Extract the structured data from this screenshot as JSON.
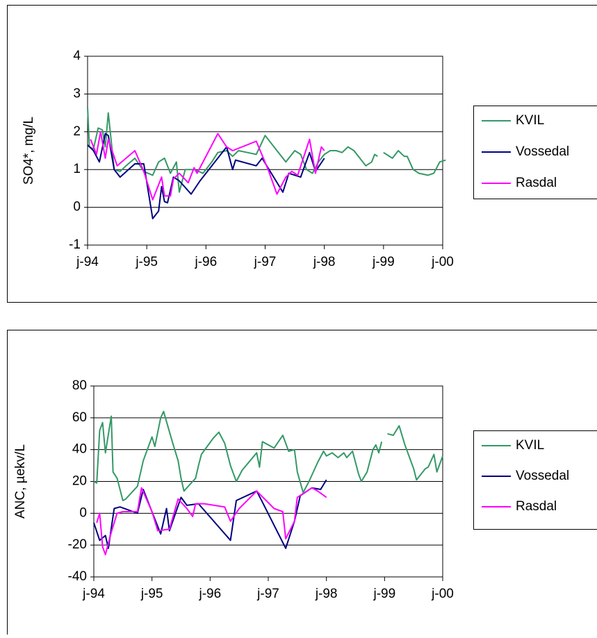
{
  "chart_data": [
    {
      "type": "line",
      "ylabel": "SO4*, mg/L",
      "ylim": [
        -1,
        4
      ],
      "yticks": [
        -1,
        0,
        1,
        2,
        3,
        4
      ],
      "xlim": [
        1994,
        2000
      ],
      "xticks": [
        {
          "value": 1994,
          "label": "j-94"
        },
        {
          "value": 1995,
          "label": "j-95"
        },
        {
          "value": 1996,
          "label": "j-96"
        },
        {
          "value": 1997,
          "label": "j-97"
        },
        {
          "value": 1998,
          "label": "j-98"
        },
        {
          "value": 1999,
          "label": "j-99"
        },
        {
          "value": 2000,
          "label": "j-00"
        }
      ],
      "grid": true,
      "legend": "right",
      "series": [
        {
          "name": "KVIL",
          "color": "#339966",
          "x": [
            1994.0,
            1994.03,
            1994.1,
            1994.18,
            1994.25,
            1994.3,
            1994.35,
            1994.45,
            1994.55,
            1994.65,
            1994.8,
            1994.95,
            1995.1,
            1995.2,
            1995.3,
            1995.4,
            1995.5,
            1995.55,
            1995.65,
            1995.8,
            1995.95,
            1996.1,
            1996.2,
            1996.35,
            1996.45,
            1996.55,
            1996.7,
            1996.85,
            1997.0,
            1997.2,
            1997.35,
            1997.5,
            1997.6,
            1997.7,
            1997.8,
            1997.9,
            1998.0,
            1998.1,
            1998.2,
            1998.3,
            1998.4,
            1998.5,
            1998.6,
            1998.7,
            1998.8,
            1998.85,
            1998.9,
            null,
            1999.0,
            1999.15,
            1999.25,
            1999.35,
            1999.4,
            1999.5,
            1999.6,
            1999.75,
            1999.85,
            1999.95,
            2000.05
          ],
          "values": [
            2.65,
            1.6,
            1.55,
            2.1,
            2.05,
            1.6,
            2.5,
            1.0,
            0.95,
            1.1,
            1.3,
            0.95,
            0.85,
            1.2,
            1.3,
            0.9,
            1.2,
            0.4,
            1.0,
            1.0,
            0.9,
            1.2,
            1.45,
            1.5,
            1.35,
            1.5,
            1.45,
            1.4,
            1.9,
            1.5,
            1.2,
            1.5,
            1.4,
            1.0,
            0.9,
            1.2,
            1.4,
            1.5,
            1.5,
            1.45,
            1.6,
            1.5,
            1.3,
            1.1,
            1.2,
            1.4,
            1.35,
            null,
            1.45,
            1.3,
            1.5,
            1.35,
            1.35,
            1.0,
            0.9,
            0.85,
            0.9,
            1.2,
            1.25
          ]
        },
        {
          "name": "Vossedal",
          "color": "#000080",
          "x": [
            1994.0,
            1994.1,
            1994.2,
            1994.3,
            1994.35,
            1994.45,
            1994.55,
            1994.8,
            1994.95,
            1995.1,
            1995.2,
            1995.25,
            1995.3,
            1995.35,
            1995.45,
            1995.55,
            1995.75,
            1995.9,
            1996.35,
            1996.45,
            1996.5,
            1996.85,
            1996.95,
            1997.3,
            1997.4,
            1997.6,
            1997.75,
            1997.85,
            1998.0
          ],
          "values": [
            1.65,
            1.5,
            1.2,
            1.95,
            1.9,
            1.0,
            0.8,
            1.15,
            1.15,
            -0.3,
            -0.1,
            0.55,
            0.15,
            0.12,
            0.8,
            0.7,
            0.35,
            0.7,
            1.6,
            1.0,
            1.25,
            1.1,
            1.3,
            0.4,
            0.9,
            0.8,
            1.45,
            0.95,
            1.3
          ]
        },
        {
          "name": "Rasdal",
          "color": "#ff00ff",
          "x": [
            1994.05,
            1994.15,
            1994.22,
            1994.3,
            1994.35,
            1994.5,
            1994.8,
            1994.95,
            1995.1,
            1995.25,
            1995.3,
            1995.4,
            1995.45,
            1995.55,
            1995.7,
            1995.8,
            1995.85,
            1996.2,
            1996.35,
            1996.45,
            1996.85,
            1997.05,
            1997.2,
            1997.35,
            1997.45,
            1997.55,
            1997.75,
            1997.85,
            1997.95,
            1998.0
          ],
          "values": [
            1.8,
            1.4,
            2.0,
            1.3,
            1.8,
            1.1,
            1.5,
            0.95,
            0.2,
            0.8,
            0.3,
            0.3,
            0.75,
            0.9,
            0.65,
            1.05,
            0.9,
            1.95,
            1.6,
            1.5,
            1.75,
            1.0,
            0.35,
            0.8,
            0.95,
            0.85,
            1.8,
            0.9,
            1.6,
            1.5
          ]
        }
      ]
    },
    {
      "type": "line",
      "ylabel": "ANC, µekv/L",
      "ylim": [
        -40,
        80
      ],
      "yticks": [
        -40,
        -20,
        0,
        20,
        40,
        60,
        80
      ],
      "xlim": [
        1994,
        2000
      ],
      "xticks": [
        {
          "value": 1994,
          "label": "j-94"
        },
        {
          "value": 1995,
          "label": "j-95"
        },
        {
          "value": 1996,
          "label": "j-96"
        },
        {
          "value": 1997,
          "label": "j-97"
        },
        {
          "value": 1998,
          "label": "j-98"
        },
        {
          "value": 1999,
          "label": "j-99"
        },
        {
          "value": 2000,
          "label": "j-00"
        }
      ],
      "grid": true,
      "legend": "right",
      "series": [
        {
          "name": "KVIL",
          "color": "#339966",
          "x": [
            1994.0,
            1994.05,
            1994.1,
            1994.15,
            1994.2,
            1994.3,
            1994.33,
            1994.4,
            1994.5,
            1994.55,
            1994.75,
            1994.85,
            1995.0,
            1995.05,
            1995.15,
            1995.2,
            1995.35,
            1995.45,
            1995.5,
            1995.55,
            1995.7,
            1995.75,
            1995.8,
            1995.85,
            1996.05,
            1996.15,
            1996.25,
            1996.35,
            1996.45,
            1996.55,
            1996.8,
            1996.85,
            1996.9,
            1997.1,
            1997.25,
            1997.35,
            1997.45,
            1997.5,
            1997.6,
            1997.7,
            1997.85,
            1997.95,
            1998.0,
            1998.1,
            1998.2,
            1998.3,
            1998.35,
            1998.45,
            1998.55,
            1998.6,
            1998.7,
            1998.8,
            1998.85,
            1998.9,
            1998.95,
            null,
            1999.05,
            1999.15,
            1999.25,
            1999.35,
            1999.5,
            1999.55,
            1999.7,
            1999.75,
            1999.85,
            1999.9,
            2000.0
          ],
          "values": [
            20,
            19,
            52,
            57,
            38,
            61,
            26,
            22,
            8,
            9,
            17,
            33,
            48,
            42,
            60,
            64,
            45,
            33,
            22,
            14,
            20,
            22,
            30,
            37,
            47,
            51,
            44,
            30,
            20,
            27,
            38,
            29,
            45,
            41,
            49,
            39,
            40,
            26,
            13,
            20,
            32,
            39,
            36,
            38,
            35,
            38,
            35,
            39,
            25,
            20,
            26,
            40,
            43,
            38,
            45,
            null,
            50,
            49,
            55,
            43,
            28,
            21,
            28,
            29,
            37,
            26,
            36
          ]
        },
        {
          "name": "Vossedal",
          "color": "#000080",
          "x": [
            1994.0,
            1994.1,
            1994.2,
            1994.25,
            1994.35,
            1994.45,
            1994.75,
            1994.85,
            1995.15,
            1995.25,
            1995.3,
            1995.5,
            1995.6,
            1995.8,
            1996.35,
            1996.45,
            1996.8,
            1996.9,
            1997.3,
            1997.45,
            1997.55,
            1997.75,
            1997.9,
            1998.0
          ],
          "values": [
            -6,
            -17,
            -14,
            -22,
            3,
            4,
            0,
            15,
            -13,
            3,
            -11,
            10,
            5,
            6,
            -17,
            8,
            14,
            7,
            -22,
            -5,
            11,
            16,
            15,
            21
          ]
        },
        {
          "name": "Rasdal",
          "color": "#ff00ff",
          "x": [
            1994.05,
            1994.1,
            1994.15,
            1994.2,
            1994.3,
            1994.4,
            1994.5,
            1994.75,
            1994.82,
            1995.0,
            1995.1,
            1995.3,
            1995.45,
            1995.6,
            1995.7,
            1995.75,
            1995.9,
            1996.25,
            1996.35,
            1996.5,
            1996.8,
            1997.1,
            1997.25,
            1997.3,
            1997.45,
            1997.5,
            1997.75,
            1997.85,
            1998.0
          ],
          "values": [
            -6,
            0,
            -21,
            -26,
            -12,
            0,
            1,
            1,
            16,
            1,
            -11,
            -10,
            9,
            3,
            -2,
            6,
            6,
            4,
            -5,
            3,
            14,
            3,
            1,
            -16,
            -5,
            10,
            16,
            14,
            10
          ]
        }
      ]
    }
  ]
}
